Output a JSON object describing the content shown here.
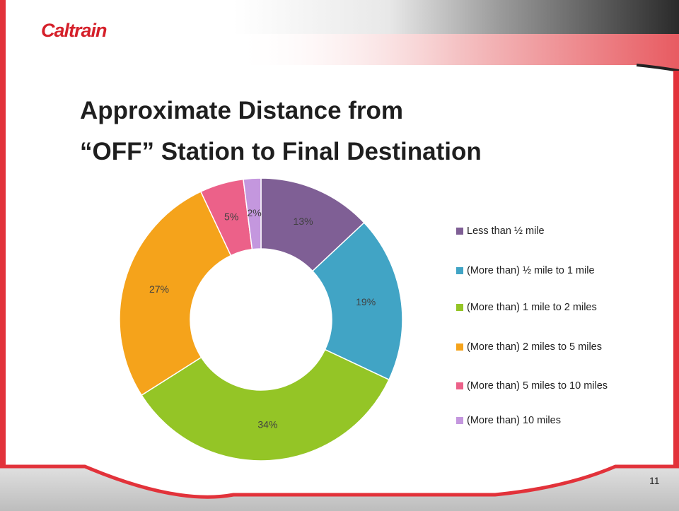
{
  "logo": "Caltrain",
  "page_number": "11",
  "chart_data": {
    "type": "donut",
    "title": "Approximate Distance from\n“OFF” Station to Final Destination",
    "categories": [
      "Less than ½ mile",
      "(More than) ½ mile to 1 mile",
      "(More than) 1 mile to 2 miles",
      "(More than) 2 miles to 5 miles",
      "(More than) 5 miles to 10 miles",
      "(More than) 10 miles"
    ],
    "values": [
      13,
      19,
      34,
      27,
      5,
      2
    ],
    "value_labels": [
      "13%",
      "19%",
      "34%",
      "27%",
      "5%",
      "2%"
    ],
    "colors": [
      "#7f5f95",
      "#41a4c5",
      "#94c526",
      "#f5a31b",
      "#ec6189",
      "#c497de"
    ],
    "legend": "right"
  }
}
